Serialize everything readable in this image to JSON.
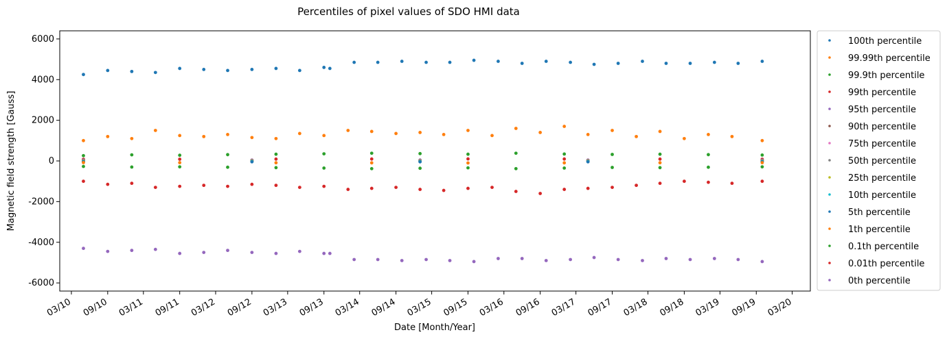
{
  "chart_data": {
    "type": "scatter",
    "title": "Percentiles of pixel values of SDO HMI data",
    "xlabel": "Date [Month/Year]",
    "ylabel": "Magnetic field strength [Gauss]",
    "x_range": [
      "2010-01-01",
      "2020-06-01"
    ],
    "ylim": [
      -6400,
      6400
    ],
    "y_ticks": [
      -6000,
      -4000,
      -2000,
      0,
      2000,
      4000,
      6000
    ],
    "x_ticks": [
      {
        "date": "2010-03-01",
        "label": "03/10"
      },
      {
        "date": "2010-09-01",
        "label": "09/10"
      },
      {
        "date": "2011-03-01",
        "label": "03/11"
      },
      {
        "date": "2011-09-01",
        "label": "09/11"
      },
      {
        "date": "2012-03-01",
        "label": "03/12"
      },
      {
        "date": "2012-09-01",
        "label": "09/12"
      },
      {
        "date": "2013-03-01",
        "label": "03/13"
      },
      {
        "date": "2013-09-01",
        "label": "09/13"
      },
      {
        "date": "2014-03-01",
        "label": "03/14"
      },
      {
        "date": "2014-09-01",
        "label": "09/14"
      },
      {
        "date": "2015-03-01",
        "label": "03/15"
      },
      {
        "date": "2015-09-01",
        "label": "09/15"
      },
      {
        "date": "2016-03-01",
        "label": "03/16"
      },
      {
        "date": "2016-09-01",
        "label": "09/16"
      },
      {
        "date": "2017-03-01",
        "label": "03/17"
      },
      {
        "date": "2017-09-01",
        "label": "09/17"
      },
      {
        "date": "2018-03-01",
        "label": "03/18"
      },
      {
        "date": "2018-09-01",
        "label": "09/18"
      },
      {
        "date": "2019-03-01",
        "label": "03/19"
      },
      {
        "date": "2019-09-01",
        "label": "09/19"
      },
      {
        "date": "2020-03-01",
        "label": "03/20"
      }
    ],
    "legend_position": "outside-right",
    "grid": false,
    "series": [
      {
        "name": "100th percentile",
        "color": "#1f77b4",
        "x": [
          "2010-05-01",
          "2010-09-01",
          "2011-01-01",
          "2011-05-01",
          "2011-09-01",
          "2012-01-01",
          "2012-05-01",
          "2012-09-01",
          "2013-01-01",
          "2013-05-01",
          "2013-09-01",
          "2013-10-01",
          "2014-02-01",
          "2014-06-01",
          "2014-10-01",
          "2015-02-01",
          "2015-06-01",
          "2015-10-01",
          "2016-02-01",
          "2016-06-01",
          "2016-10-01",
          "2017-02-01",
          "2017-06-01",
          "2017-10-01",
          "2018-02-01",
          "2018-06-01",
          "2018-10-01",
          "2019-02-01",
          "2019-06-01",
          "2019-10-01"
        ],
        "y": [
          4250,
          4450,
          4400,
          4350,
          4550,
          4500,
          4450,
          4500,
          4550,
          4450,
          4600,
          4550,
          4850,
          4850,
          4900,
          4850,
          4850,
          4950,
          4900,
          4800,
          4900,
          4850,
          4750,
          4800,
          4900,
          4800,
          4800,
          4850,
          4800,
          4900
        ]
      },
      {
        "name": "99.99th percentile",
        "color": "#ff7f0e",
        "x": [
          "2010-05-01",
          "2010-09-01",
          "2011-01-01",
          "2011-05-01",
          "2011-09-01",
          "2012-01-01",
          "2012-05-01",
          "2012-09-01",
          "2013-01-01",
          "2013-05-01",
          "2013-09-01",
          "2014-01-01",
          "2014-05-01",
          "2014-09-01",
          "2015-01-01",
          "2015-05-01",
          "2015-09-01",
          "2016-01-01",
          "2016-05-01",
          "2016-09-01",
          "2017-01-01",
          "2017-05-01",
          "2017-09-01",
          "2018-01-01",
          "2018-05-01",
          "2018-09-01",
          "2019-01-01",
          "2019-05-01",
          "2019-10-01"
        ],
        "y": [
          1000,
          1200,
          1100,
          1500,
          1250,
          1200,
          1300,
          1150,
          1100,
          1350,
          1250,
          1500,
          1450,
          1350,
          1400,
          1300,
          1500,
          1250,
          1600,
          1400,
          1700,
          1300,
          1500,
          1200,
          1450,
          1100,
          1300,
          1200,
          1000
        ]
      },
      {
        "name": "99.9th percentile",
        "color": "#2ca02c",
        "x": [
          "2010-05-01",
          "2011-01-01",
          "2011-09-01",
          "2012-05-01",
          "2013-01-01",
          "2013-09-01",
          "2014-05-01",
          "2015-01-01",
          "2015-09-01",
          "2016-05-01",
          "2017-01-01",
          "2017-09-01",
          "2018-05-01",
          "2019-01-01",
          "2019-10-01"
        ],
        "y": [
          260,
          300,
          280,
          310,
          330,
          350,
          380,
          360,
          330,
          380,
          340,
          320,
          330,
          310,
          290
        ]
      },
      {
        "name": "99th percentile",
        "color": "#d62728",
        "x": [
          "2010-05-01",
          "2011-09-01",
          "2013-01-01",
          "2014-05-01",
          "2015-09-01",
          "2017-01-01",
          "2018-05-01",
          "2019-10-01"
        ],
        "y": [
          80,
          85,
          90,
          95,
          100,
          95,
          90,
          85
        ]
      },
      {
        "name": "95th percentile",
        "color": "#9467bd",
        "x": [
          "2010-05-01",
          "2012-09-01",
          "2015-01-01",
          "2017-05-01",
          "2019-10-01"
        ],
        "y": [
          40,
          42,
          45,
          42,
          40
        ]
      },
      {
        "name": "90th percentile",
        "color": "#8c564b",
        "x": [
          "2010-05-01",
          "2012-09-01",
          "2015-01-01",
          "2017-05-01",
          "2019-10-01"
        ],
        "y": [
          25,
          27,
          28,
          27,
          25
        ]
      },
      {
        "name": "75th percentile",
        "color": "#e377c2",
        "x": [
          "2010-05-01",
          "2012-09-01",
          "2015-01-01",
          "2017-05-01",
          "2019-10-01"
        ],
        "y": [
          10,
          11,
          12,
          11,
          10
        ]
      },
      {
        "name": "50th percentile",
        "color": "#7f7f7f",
        "x": [
          "2010-05-01",
          "2012-09-01",
          "2015-01-01",
          "2017-05-01",
          "2019-10-01"
        ],
        "y": [
          0,
          0,
          0,
          0,
          0
        ]
      },
      {
        "name": "25th percentile",
        "color": "#bcbd22",
        "x": [
          "2010-05-01",
          "2012-09-01",
          "2015-01-01",
          "2017-05-01",
          "2019-10-01"
        ],
        "y": [
          -10,
          -11,
          -12,
          -11,
          -10
        ]
      },
      {
        "name": "10th percentile",
        "color": "#17becf",
        "x": [
          "2010-05-01",
          "2012-09-01",
          "2015-01-01",
          "2017-05-01",
          "2019-10-01"
        ],
        "y": [
          -25,
          -27,
          -28,
          -27,
          -25
        ]
      },
      {
        "name": "5th percentile",
        "color": "#1f77b4",
        "x": [
          "2010-05-01",
          "2012-09-01",
          "2015-01-01",
          "2017-05-01",
          "2019-10-01"
        ],
        "y": [
          -40,
          -42,
          -45,
          -42,
          -40
        ]
      },
      {
        "name": "1th percentile",
        "color": "#ff7f0e",
        "x": [
          "2010-05-01",
          "2011-09-01",
          "2013-01-01",
          "2014-05-01",
          "2015-09-01",
          "2017-01-01",
          "2018-05-01",
          "2019-10-01"
        ],
        "y": [
          -80,
          -85,
          -90,
          -95,
          -100,
          -95,
          -90,
          -85
        ]
      },
      {
        "name": "0.1th percentile",
        "color": "#2ca02c",
        "x": [
          "2010-05-01",
          "2011-01-01",
          "2011-09-01",
          "2012-05-01",
          "2013-01-01",
          "2013-09-01",
          "2014-05-01",
          "2015-01-01",
          "2015-09-01",
          "2016-05-01",
          "2017-01-01",
          "2017-09-01",
          "2018-05-01",
          "2019-01-01",
          "2019-10-01"
        ],
        "y": [
          -270,
          -300,
          -290,
          -310,
          -330,
          -350,
          -380,
          -360,
          -340,
          -380,
          -350,
          -320,
          -330,
          -310,
          -290
        ]
      },
      {
        "name": "0.01th percentile",
        "color": "#d62728",
        "x": [
          "2010-05-01",
          "2010-09-01",
          "2011-01-01",
          "2011-05-01",
          "2011-09-01",
          "2012-01-01",
          "2012-05-01",
          "2012-09-01",
          "2013-01-01",
          "2013-05-01",
          "2013-09-01",
          "2014-01-01",
          "2014-05-01",
          "2014-09-01",
          "2015-01-01",
          "2015-05-01",
          "2015-09-01",
          "2016-01-01",
          "2016-05-01",
          "2016-09-01",
          "2017-01-01",
          "2017-05-01",
          "2017-09-01",
          "2018-01-01",
          "2018-05-01",
          "2018-09-01",
          "2019-01-01",
          "2019-05-01",
          "2019-10-01"
        ],
        "y": [
          -1000,
          -1150,
          -1100,
          -1300,
          -1250,
          -1200,
          -1250,
          -1150,
          -1200,
          -1300,
          -1250,
          -1400,
          -1350,
          -1300,
          -1400,
          -1450,
          -1350,
          -1300,
          -1500,
          -1600,
          -1400,
          -1350,
          -1300,
          -1200,
          -1100,
          -1000,
          -1050,
          -1100,
          -1000
        ]
      },
      {
        "name": "0th percentile",
        "color": "#9467bd",
        "x": [
          "2010-05-01",
          "2010-09-01",
          "2011-01-01",
          "2011-05-01",
          "2011-09-01",
          "2012-01-01",
          "2012-05-01",
          "2012-09-01",
          "2013-01-01",
          "2013-05-01",
          "2013-09-01",
          "2013-10-01",
          "2014-02-01",
          "2014-06-01",
          "2014-10-01",
          "2015-02-01",
          "2015-06-01",
          "2015-10-01",
          "2016-02-01",
          "2016-06-01",
          "2016-10-01",
          "2017-02-01",
          "2017-06-01",
          "2017-10-01",
          "2018-02-01",
          "2018-06-01",
          "2018-10-01",
          "2019-02-01",
          "2019-06-01",
          "2019-10-01"
        ],
        "y": [
          -4300,
          -4450,
          -4400,
          -4350,
          -4550,
          -4500,
          -4400,
          -4500,
          -4550,
          -4450,
          -4550,
          -4550,
          -4850,
          -4850,
          -4900,
          -4850,
          -4900,
          -4950,
          -4800,
          -4800,
          -4900,
          -4850,
          -4750,
          -4850,
          -4900,
          -4800,
          -4850,
          -4800,
          -4850,
          -4950
        ]
      }
    ]
  }
}
